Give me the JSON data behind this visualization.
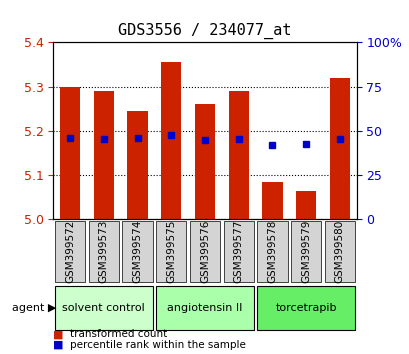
{
  "title": "GDS3556 / 234077_at",
  "samples": [
    "GSM399572",
    "GSM399573",
    "GSM399574",
    "GSM399575",
    "GSM399576",
    "GSM399577",
    "GSM399578",
    "GSM399579",
    "GSM399580"
  ],
  "bar_values": [
    5.3,
    5.29,
    5.245,
    5.355,
    5.26,
    5.29,
    5.085,
    5.065,
    5.32
  ],
  "bar_base": 5.0,
  "percentile_values": [
    5.185,
    5.182,
    5.185,
    5.19,
    5.18,
    5.183,
    5.168,
    5.17,
    5.183
  ],
  "ylim": [
    5.0,
    5.4
  ],
  "yticks_left": [
    5.0,
    5.1,
    5.2,
    5.3,
    5.4
  ],
  "yticks_right": [
    0,
    25,
    50,
    75,
    100
  ],
  "bar_color": "#cc2200",
  "dot_color": "#0000cc",
  "grid_color": "#000000",
  "bar_width": 0.6,
  "groups": [
    {
      "label": "solvent control",
      "indices": [
        0,
        1,
        2
      ],
      "color": "#ccffcc"
    },
    {
      "label": "angiotensin II",
      "indices": [
        3,
        4,
        5
      ],
      "color": "#aaffaa"
    },
    {
      "label": "torcetrapib",
      "indices": [
        6,
        7,
        8
      ],
      "color": "#66ee66"
    }
  ],
  "agent_label": "agent",
  "legend_items": [
    {
      "label": "transformed count",
      "color": "#cc2200"
    },
    {
      "label": "percentile rank within the sample",
      "color": "#0000cc"
    }
  ],
  "bg_color": "#ffffff",
  "plot_bg": "#ffffff",
  "tick_color_left": "#cc2200",
  "tick_color_right": "#0000cc",
  "xlabel_area_color": "#cccccc"
}
